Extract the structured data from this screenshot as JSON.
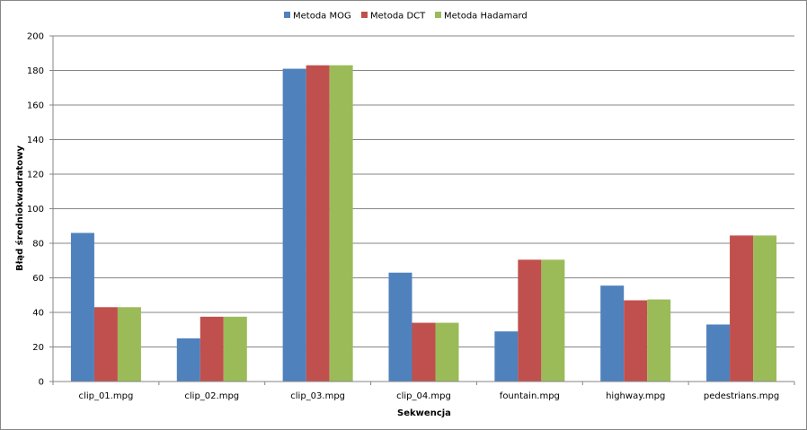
{
  "chart_data": {
    "type": "bar",
    "title": "",
    "xlabel": "Sekwencja",
    "ylabel": "Błąd średniokwadratowy",
    "ylim": [
      0,
      200
    ],
    "y_ticks": [
      0,
      20,
      40,
      60,
      80,
      100,
      120,
      140,
      160,
      180,
      200
    ],
    "grid": true,
    "legend_position": "top-center",
    "categories": [
      "clip_01.mpg",
      "clip_02.mpg",
      "clip_03.mpg",
      "clip_04.mpg",
      "fountain.mpg",
      "highway.mpg",
      "pedestrians.mpg"
    ],
    "series": [
      {
        "name": "Metoda MOG",
        "color": "#4f81bd",
        "values": [
          86,
          25,
          181,
          63,
          29,
          55.5,
          33
        ]
      },
      {
        "name": "Metoda DCT",
        "color": "#c0504d",
        "values": [
          43,
          37.5,
          183,
          34,
          70.5,
          47,
          84.5
        ]
      },
      {
        "name": "Metoda Hadamard",
        "color": "#9bbb59",
        "values": [
          43,
          37.5,
          183,
          34,
          70.5,
          47.5,
          84.5
        ]
      }
    ]
  }
}
